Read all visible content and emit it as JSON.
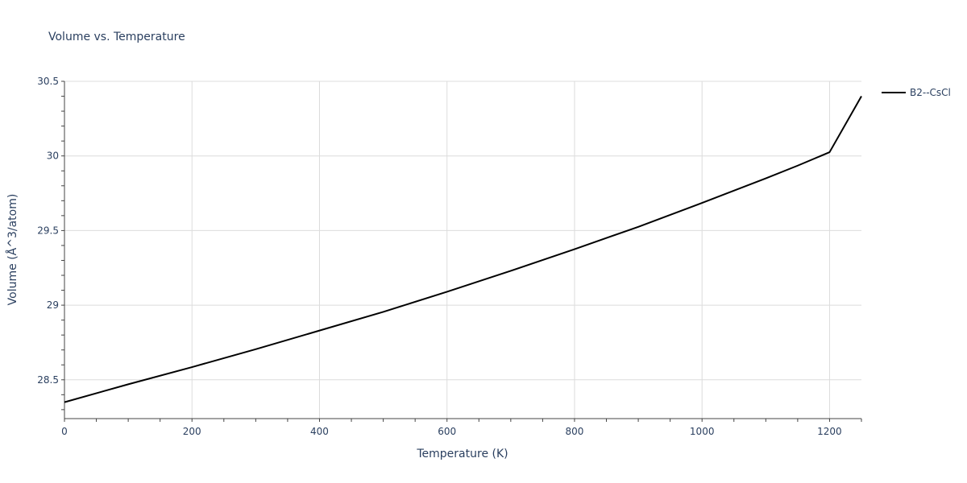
{
  "chart_data": {
    "type": "line",
    "title": "Volume vs. Temperature",
    "xlabel": "Temperature (K)",
    "ylabel": "Volume (Å^3/atom)",
    "xlim": [
      0,
      1250
    ],
    "ylim": [
      28.24,
      30.5
    ],
    "x_ticks": [
      0,
      200,
      400,
      600,
      800,
      1000,
      1200
    ],
    "x_tick_labels": [
      "0",
      "200",
      "400",
      "600",
      "800",
      "1000",
      "1200"
    ],
    "y_ticks": [
      28.5,
      29,
      29.5,
      30,
      30.5
    ],
    "y_tick_labels": [
      "28.5",
      "29",
      "29.5",
      "30",
      "30.5"
    ],
    "grid": true,
    "legend_position": "top-right",
    "series": [
      {
        "name": "B2--CsCl",
        "color": "#000000",
        "x": [
          0,
          100,
          200,
          300,
          400,
          500,
          600,
          700,
          800,
          900,
          1000,
          1100,
          1150,
          1200,
          1250
        ],
        "y": [
          28.35,
          28.47,
          28.585,
          28.705,
          28.83,
          28.955,
          29.09,
          29.23,
          29.375,
          29.525,
          29.685,
          29.85,
          29.935,
          30.025,
          30.4
        ]
      }
    ]
  }
}
